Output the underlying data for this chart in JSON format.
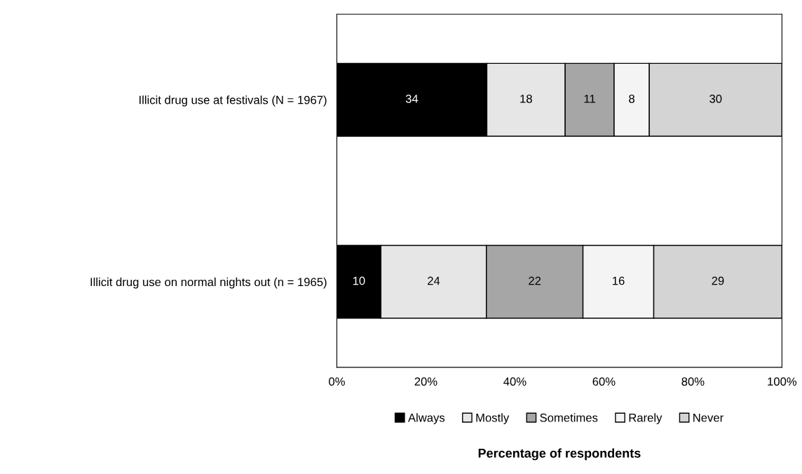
{
  "chart_data": {
    "type": "bar",
    "orientation": "horizontal",
    "stacked": true,
    "xlabel": "Percentage of respondents",
    "categories": [
      "Illicit drug use at festivals (N = 1967)",
      "Illicit drug use on normal nights out (n = 1965)"
    ],
    "series": [
      {
        "name": "Always",
        "color": "#000000",
        "values": [
          33.7,
          9.9
        ],
        "value_labels": [
          "34",
          "10"
        ]
      },
      {
        "name": "Mostly",
        "color": "#e6e6e6",
        "values": [
          17.6,
          23.7
        ],
        "value_labels": [
          "18",
          "24"
        ]
      },
      {
        "name": "Sometimes",
        "color": "#a6a6a6",
        "values": [
          11.0,
          21.7
        ],
        "value_labels": [
          "11",
          "22"
        ]
      },
      {
        "name": "Rarely",
        "color": "#f4f4f4",
        "values": [
          7.9,
          15.9
        ],
        "value_labels": [
          "8",
          "16"
        ]
      },
      {
        "name": "Never",
        "color": "#d4d4d4",
        "values": [
          29.8,
          28.8
        ],
        "value_labels": [
          "30",
          "29"
        ]
      }
    ],
    "xlim": [
      0,
      100
    ],
    "xticks": [
      {
        "value": 0,
        "label": "0%"
      },
      {
        "value": 20,
        "label": "20%"
      },
      {
        "value": 40,
        "label": "40%"
      },
      {
        "value": 60,
        "label": "60%"
      },
      {
        "value": 80,
        "label": "80%"
      },
      {
        "value": 100,
        "label": "100%"
      }
    ],
    "grid": false,
    "legend": "bottom"
  }
}
